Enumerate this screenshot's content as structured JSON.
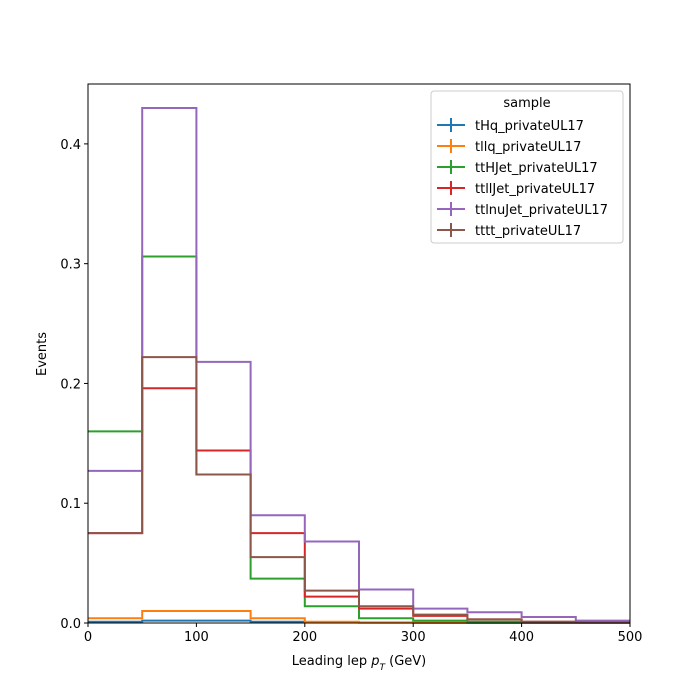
{
  "chart_data": {
    "type": "step-histogram",
    "title": "",
    "xlabel": "Leading lep $p_T$ (GeV)",
    "xlabel_main": "Leading lep ",
    "xlabel_p": "p",
    "xlabel_sub": "T",
    "xlabel_unit": " (GeV)",
    "ylabel": "Events",
    "xlim": [
      0,
      500
    ],
    "ylim": [
      0,
      0.45
    ],
    "xticks": [
      0,
      100,
      200,
      300,
      400,
      500
    ],
    "yticks": [
      0.0,
      0.1,
      0.2,
      0.3,
      0.4
    ],
    "xtick_labels": [
      "0",
      "100",
      "200",
      "300",
      "400",
      "500"
    ],
    "ytick_labels": [
      "0.0",
      "0.1",
      "0.2",
      "0.3",
      "0.4"
    ],
    "bin_edges": [
      0,
      50,
      100,
      150,
      200,
      250,
      300,
      350,
      400,
      450,
      500
    ],
    "grid": false,
    "legend": {
      "title": "sample",
      "placement": "top-right"
    },
    "series": [
      {
        "name": "tHq_privateUL17",
        "color": "#1f77b4",
        "values": [
          0.001,
          0.002,
          0.002,
          0.001,
          0.0005,
          0.0003,
          0.0002,
          0.0001,
          0.0001,
          0.0001
        ]
      },
      {
        "name": "tllq_privateUL17",
        "color": "#ff7f0e",
        "values": [
          0.004,
          0.01,
          0.01,
          0.004,
          0.001,
          0.0005,
          0.0003,
          0.0002,
          0.0001,
          0.0001
        ]
      },
      {
        "name": "ttHJet_privateUL17",
        "color": "#2ca02c",
        "values": [
          0.16,
          0.306,
          0.124,
          0.037,
          0.014,
          0.004,
          0.002,
          0.001,
          0.0005,
          0.0003
        ]
      },
      {
        "name": "ttllJet_privateUL17",
        "color": "#d62728",
        "values": [
          0.075,
          0.196,
          0.144,
          0.075,
          0.022,
          0.012,
          0.006,
          0.003,
          0.001,
          0.0005
        ]
      },
      {
        "name": "ttlnuJet_privateUL17",
        "color": "#9467bd",
        "values": [
          0.127,
          0.43,
          0.218,
          0.09,
          0.068,
          0.028,
          0.012,
          0.009,
          0.005,
          0.002
        ]
      },
      {
        "name": "tttt_privateUL17",
        "color": "#8c564b",
        "values": [
          0.075,
          0.222,
          0.124,
          0.055,
          0.027,
          0.014,
          0.007,
          0.003,
          0.001,
          0.0005
        ]
      }
    ]
  }
}
